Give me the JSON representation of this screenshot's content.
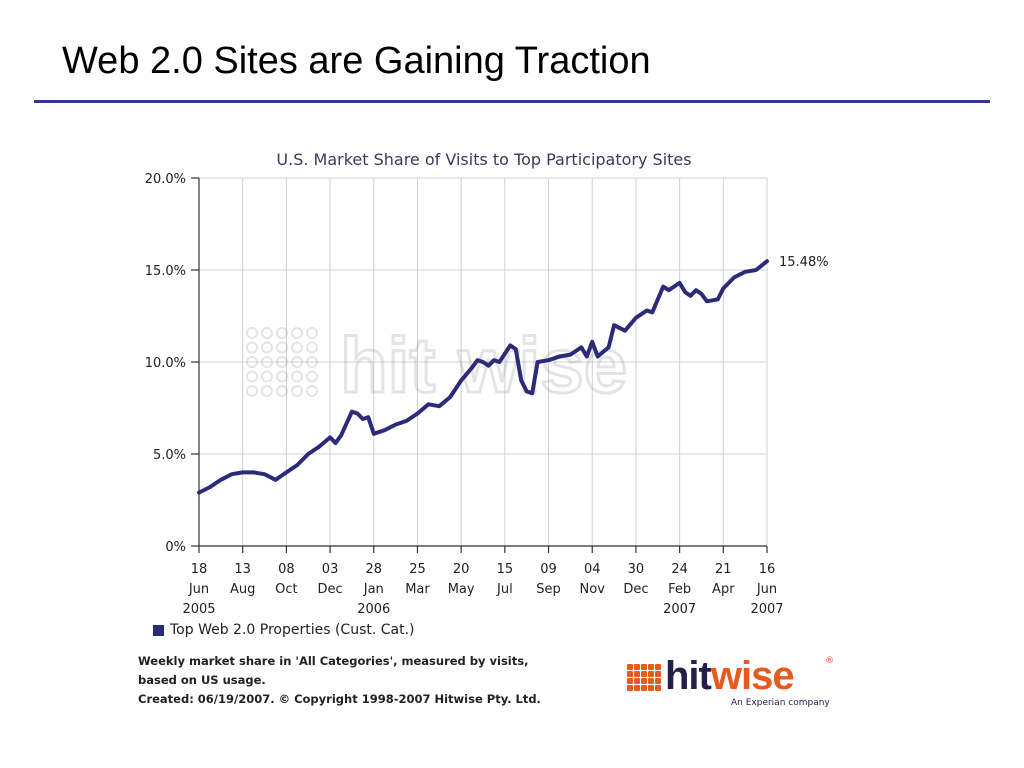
{
  "slide": {
    "title": "Web 2.0 Sites are Gaining Traction"
  },
  "colors": {
    "rule": "#33339a",
    "series": "#2b2b7a",
    "grid": "#d0d0d0",
    "logo_dark": "#231f4a",
    "logo_orange": "#e65a1e"
  },
  "chart_data": {
    "type": "line",
    "title": "U.S. Market Share of Visits to Top Participatory Sites",
    "ylim": [
      0,
      20
    ],
    "y_ticks": [
      0,
      5,
      10,
      15,
      20
    ],
    "y_tick_labels": [
      "0%",
      "5.0%",
      "10.0%",
      "15.0%",
      "20.0%"
    ],
    "x_ticks": [
      {
        "date": "2005-06-18",
        "day": "18",
        "month": "Jun",
        "year": "2005"
      },
      {
        "date": "2005-08-13",
        "day": "13",
        "month": "Aug",
        "year": ""
      },
      {
        "date": "2005-10-08",
        "day": "08",
        "month": "Oct",
        "year": ""
      },
      {
        "date": "2005-12-03",
        "day": "03",
        "month": "Dec",
        "year": ""
      },
      {
        "date": "2006-01-28",
        "day": "28",
        "month": "Jan",
        "year": "2006"
      },
      {
        "date": "2006-03-25",
        "day": "25",
        "month": "Mar",
        "year": ""
      },
      {
        "date": "2006-05-20",
        "day": "20",
        "month": "May",
        "year": ""
      },
      {
        "date": "2006-07-15",
        "day": "15",
        "month": "Jul",
        "year": ""
      },
      {
        "date": "2006-09-09",
        "day": "09",
        "month": "Sep",
        "year": ""
      },
      {
        "date": "2006-11-04",
        "day": "04",
        "month": "Nov",
        "year": ""
      },
      {
        "date": "2006-12-30",
        "day": "30",
        "month": "Dec",
        "year": ""
      },
      {
        "date": "2007-02-24",
        "day": "24",
        "month": "Feb",
        "year": "2007"
      },
      {
        "date": "2007-04-21",
        "day": "21",
        "month": "Apr",
        "year": ""
      },
      {
        "date": "2007-06-16",
        "day": "16",
        "month": "Jun",
        "year": "2007"
      }
    ],
    "grid": true,
    "series": [
      {
        "name": "Top Web 2.0 Properties (Cust. Cat.)",
        "end_label": "15.48%",
        "points": [
          [
            "2005-06-18",
            2.9
          ],
          [
            "2005-07-02",
            3.2
          ],
          [
            "2005-07-16",
            3.6
          ],
          [
            "2005-07-30",
            3.9
          ],
          [
            "2005-08-13",
            4.0
          ],
          [
            "2005-08-27",
            4.0
          ],
          [
            "2005-09-10",
            3.9
          ],
          [
            "2005-09-24",
            3.6
          ],
          [
            "2005-10-08",
            4.0
          ],
          [
            "2005-10-22",
            4.4
          ],
          [
            "2005-11-05",
            5.0
          ],
          [
            "2005-11-19",
            5.4
          ],
          [
            "2005-12-03",
            5.9
          ],
          [
            "2005-12-10",
            5.6
          ],
          [
            "2005-12-17",
            6.0
          ],
          [
            "2005-12-31",
            7.3
          ],
          [
            "2006-01-07",
            7.2
          ],
          [
            "2006-01-14",
            6.9
          ],
          [
            "2006-01-21",
            7.0
          ],
          [
            "2006-01-28",
            6.1
          ],
          [
            "2006-02-11",
            6.3
          ],
          [
            "2006-02-25",
            6.6
          ],
          [
            "2006-03-11",
            6.8
          ],
          [
            "2006-03-25",
            7.2
          ],
          [
            "2006-04-08",
            7.7
          ],
          [
            "2006-04-22",
            7.6
          ],
          [
            "2006-05-06",
            8.1
          ],
          [
            "2006-05-20",
            9.0
          ],
          [
            "2006-06-03",
            9.7
          ],
          [
            "2006-06-10",
            10.1
          ],
          [
            "2006-06-17",
            10.0
          ],
          [
            "2006-06-24",
            9.8
          ],
          [
            "2006-07-01",
            10.1
          ],
          [
            "2006-07-08",
            10.0
          ],
          [
            "2006-07-22",
            10.9
          ],
          [
            "2006-07-29",
            10.7
          ],
          [
            "2006-08-05",
            9.0
          ],
          [
            "2006-08-12",
            8.4
          ],
          [
            "2006-08-19",
            8.3
          ],
          [
            "2006-08-26",
            10.0
          ],
          [
            "2006-09-09",
            10.1
          ],
          [
            "2006-09-23",
            10.3
          ],
          [
            "2006-10-07",
            10.4
          ],
          [
            "2006-10-21",
            10.8
          ],
          [
            "2006-10-28",
            10.3
          ],
          [
            "2006-11-04",
            11.1
          ],
          [
            "2006-11-11",
            10.3
          ],
          [
            "2006-11-25",
            10.8
          ],
          [
            "2006-12-02",
            12.0
          ],
          [
            "2006-12-16",
            11.7
          ],
          [
            "2006-12-30",
            12.4
          ],
          [
            "2007-01-13",
            12.8
          ],
          [
            "2007-01-20",
            12.7
          ],
          [
            "2007-02-03",
            14.1
          ],
          [
            "2007-02-10",
            13.9
          ],
          [
            "2007-02-24",
            14.3
          ],
          [
            "2007-03-03",
            13.8
          ],
          [
            "2007-03-10",
            13.6
          ],
          [
            "2007-03-17",
            13.9
          ],
          [
            "2007-03-24",
            13.7
          ],
          [
            "2007-03-31",
            13.3
          ],
          [
            "2007-04-14",
            13.4
          ],
          [
            "2007-04-21",
            14.0
          ],
          [
            "2007-05-05",
            14.6
          ],
          [
            "2007-05-19",
            14.9
          ],
          [
            "2007-06-02",
            15.0
          ],
          [
            "2007-06-16",
            15.48
          ]
        ]
      }
    ]
  },
  "footnote": {
    "line1": "Weekly market share in 'All Categories', measured by visits,",
    "line2": "based on US usage.",
    "line3": "Created: 06/19/2007. © Copyright 1998-2007 Hitwise Pty. Ltd."
  },
  "logo": {
    "part1": "hit",
    "part2": "wise",
    "reg": "®",
    "subtitle": "An Experian company"
  }
}
